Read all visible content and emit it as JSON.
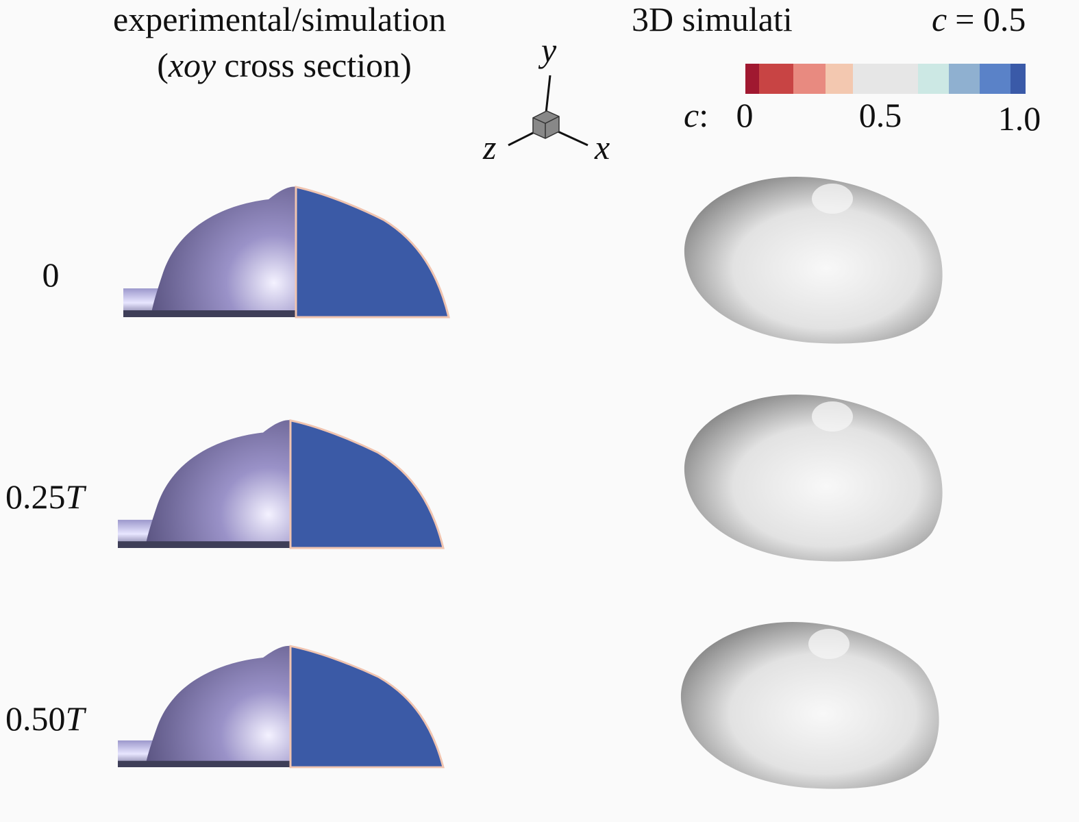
{
  "header": {
    "left_title_line1": "experimental/simulation",
    "left_title_line2": {
      "open": "(",
      "var": "xoy",
      "rest": "cross section)"
    },
    "right_title": "3D simulati",
    "iso": {
      "var": "c",
      "rest": "= 0.5"
    }
  },
  "axes": {
    "x": "x",
    "y": "y",
    "z": "z"
  },
  "colorbar": {
    "var": "c",
    "colon": ":",
    "ticks": [
      "0",
      "0.5",
      "1.0"
    ]
  },
  "rows": [
    {
      "label": "0"
    },
    {
      "label": "0.25",
      "unit": "T"
    },
    {
      "label": "0.50",
      "unit": "T"
    }
  ]
}
